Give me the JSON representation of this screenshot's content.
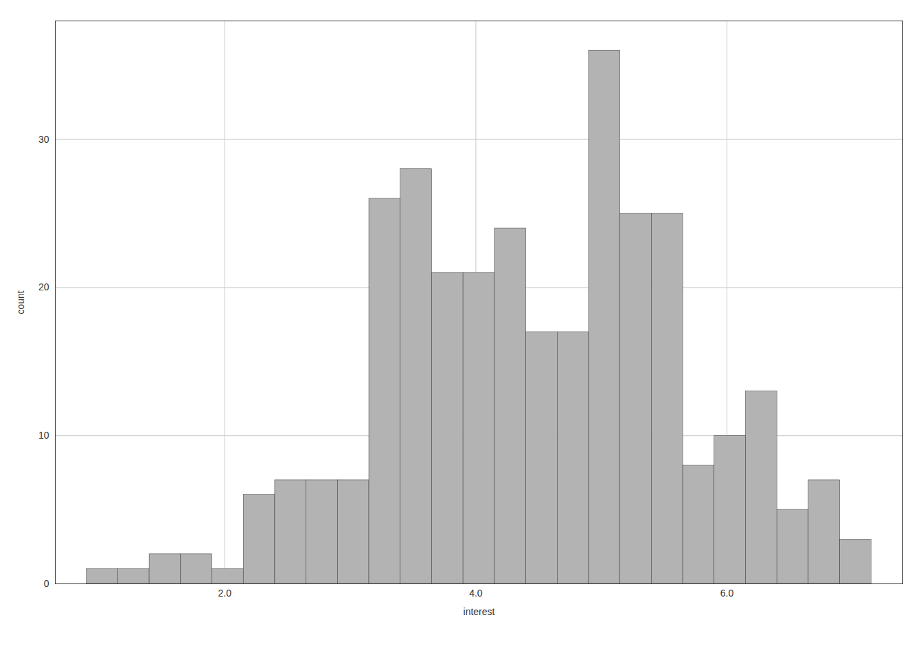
{
  "chart_data": {
    "type": "histogram",
    "bins": [
      0.9,
      1.15,
      1.4,
      1.65,
      1.9,
      2.15,
      2.4,
      2.65,
      2.9,
      3.15,
      3.4,
      3.65,
      3.9,
      4.15,
      4.4,
      4.65,
      4.9,
      5.15,
      5.4,
      5.65,
      5.9,
      6.15,
      6.4,
      6.65,
      6.9,
      7.15
    ],
    "values": [
      1,
      1,
      2,
      2,
      1,
      6,
      7,
      7,
      7,
      26,
      28,
      21,
      21,
      24,
      17,
      17,
      36,
      25,
      25,
      8,
      10,
      13,
      5,
      7,
      3
    ],
    "color": "#b3b3b3",
    "xlabel": "interest",
    "ylabel": "count",
    "xlim": [
      0.65,
      7.4
    ],
    "ylim": [
      0,
      38
    ],
    "xticks": [
      2,
      4,
      6
    ],
    "yticks": [
      0,
      10,
      20,
      30
    ],
    "grid": true
  }
}
